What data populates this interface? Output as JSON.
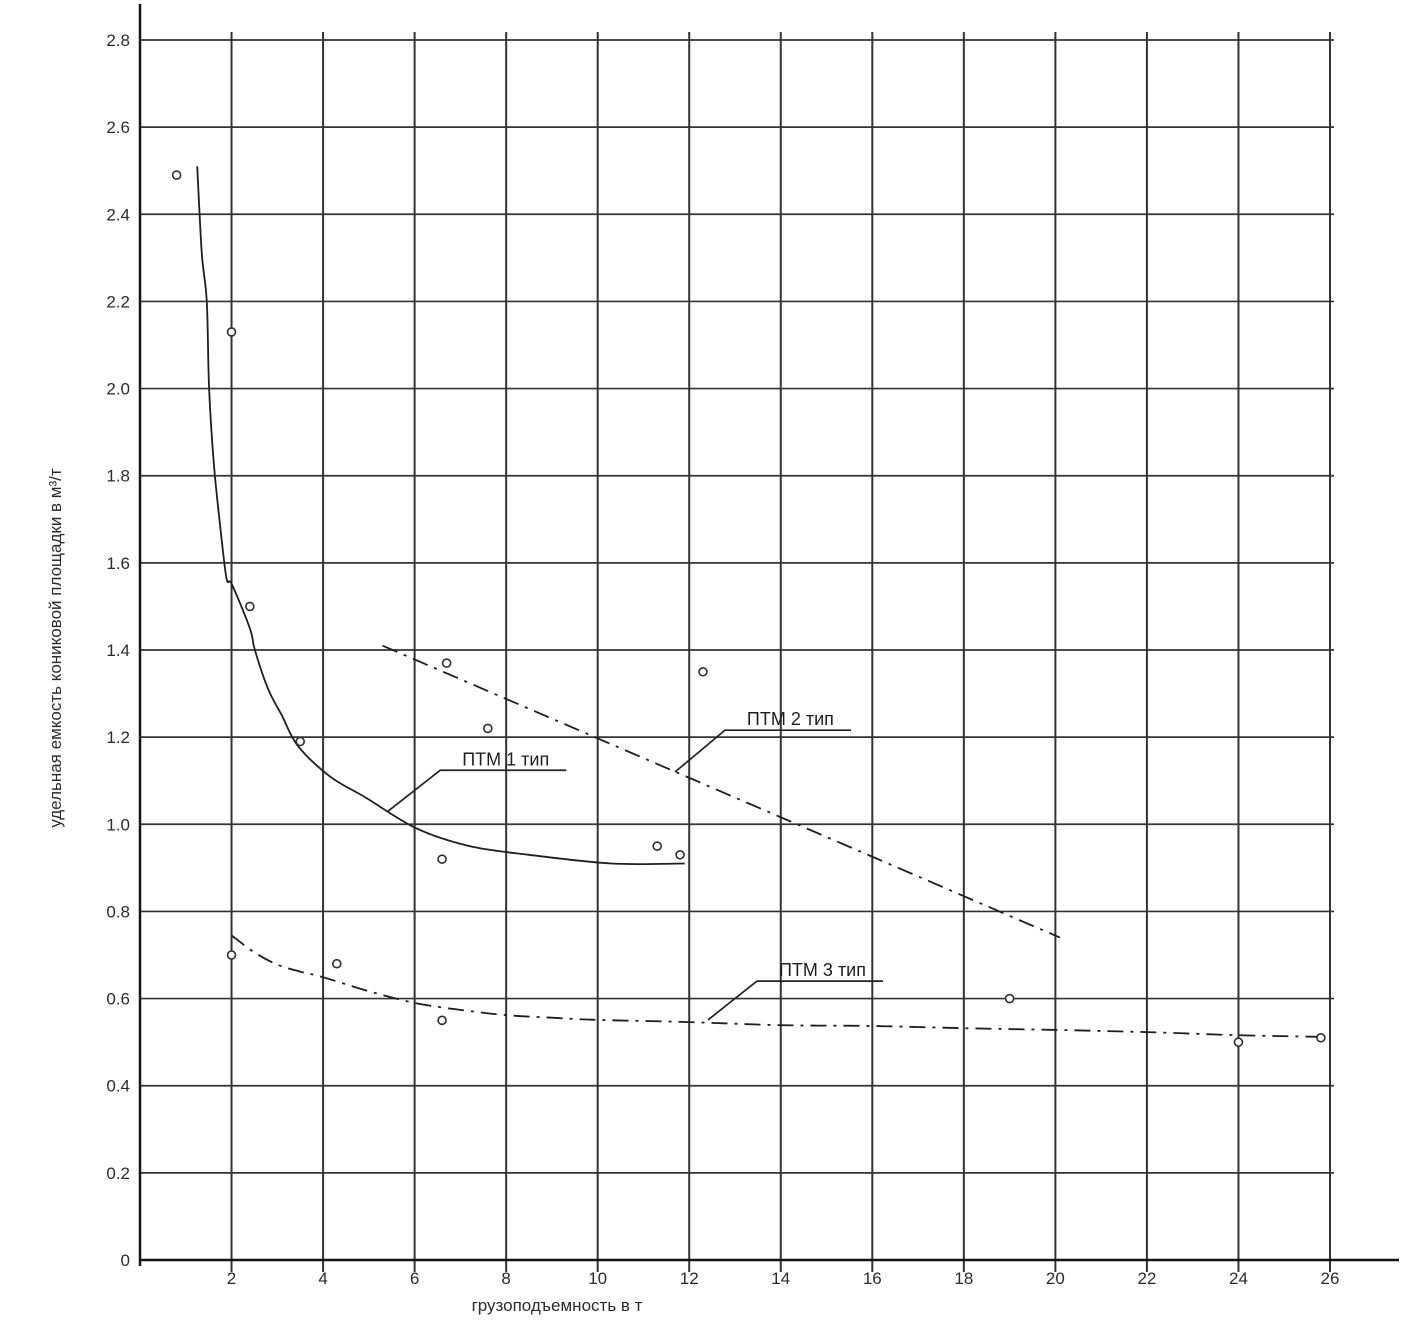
{
  "chart_data": {
    "type": "scatter",
    "title": "",
    "xlabel": "грузоподъемность в т",
    "ylabel": "удельная емкость кониковой площадки в м³/т",
    "xlim": [
      0,
      26
    ],
    "ylim": [
      0,
      2.8
    ],
    "grid": true,
    "line_color": "#1e1e1e",
    "grid_color": "#333333",
    "axis_color": "#141414",
    "xticks": [
      {
        "value": 2,
        "label": "2"
      },
      {
        "value": 4,
        "label": "4"
      },
      {
        "value": 6,
        "label": "6"
      },
      {
        "value": 8,
        "label": "8"
      },
      {
        "value": 10,
        "label": "10"
      },
      {
        "value": 12,
        "label": "12"
      },
      {
        "value": 14,
        "label": "14"
      },
      {
        "value": 16,
        "label": "16"
      },
      {
        "value": 18,
        "label": "18"
      },
      {
        "value": 20,
        "label": "20"
      },
      {
        "value": 22,
        "label": "22"
      },
      {
        "value": 24,
        "label": "24"
      },
      {
        "value": 26,
        "label": "26"
      }
    ],
    "yticks": [
      {
        "value": 0,
        "label": "0"
      },
      {
        "value": 0.2,
        "label": "0.2"
      },
      {
        "value": 0.4,
        "label": "0.4"
      },
      {
        "value": 0.6,
        "label": "0.6"
      },
      {
        "value": 0.8,
        "label": "0.8"
      },
      {
        "value": 1.0,
        "label": "1.0"
      },
      {
        "value": 1.2,
        "label": "1.2"
      },
      {
        "value": 1.4,
        "label": "1.4"
      },
      {
        "value": 1.6,
        "label": "1.6"
      },
      {
        "value": 1.8,
        "label": "1.8"
      },
      {
        "value": 2.0,
        "label": "2.0"
      },
      {
        "value": 2.2,
        "label": "2.2"
      },
      {
        "value": 2.4,
        "label": "2.4"
      },
      {
        "value": 2.6,
        "label": "2.6"
      },
      {
        "value": 2.8,
        "label": "2.8"
      }
    ],
    "scatter_points": [
      [
        0.8,
        2.49
      ],
      [
        2.0,
        2.13
      ],
      [
        2.4,
        1.5
      ],
      [
        3.5,
        1.19
      ],
      [
        6.7,
        1.37
      ],
      [
        7.6,
        1.22
      ],
      [
        6.6,
        0.92
      ],
      [
        11.3,
        0.95
      ],
      [
        11.8,
        0.93
      ],
      [
        12.3,
        1.35
      ],
      [
        2.0,
        0.7
      ],
      [
        4.3,
        0.68
      ],
      [
        6.6,
        0.55
      ],
      [
        19.0,
        0.6
      ],
      [
        24.0,
        0.5
      ],
      [
        25.8,
        0.51
      ]
    ],
    "series": [
      {
        "key": "ptm-1",
        "name": "ПТМ 1 тип",
        "style": "solid",
        "points": [
          [
            1.25,
            2.51
          ],
          [
            1.35,
            2.31
          ],
          [
            1.46,
            2.2
          ],
          [
            1.51,
            2.0
          ],
          [
            1.62,
            1.82
          ],
          [
            1.81,
            1.63
          ],
          [
            1.9,
            1.56
          ],
          [
            2.01,
            1.55
          ],
          [
            2.4,
            1.45
          ],
          [
            2.51,
            1.4
          ],
          [
            2.8,
            1.31
          ],
          [
            3.1,
            1.25
          ],
          [
            3.45,
            1.18
          ],
          [
            4.15,
            1.11
          ],
          [
            4.95,
            1.06
          ],
          [
            6.05,
            0.99
          ],
          [
            7.2,
            0.95
          ],
          [
            8.5,
            0.93
          ],
          [
            10.3,
            0.91
          ],
          [
            11.9,
            0.91
          ]
        ]
      },
      {
        "key": "ptm-2",
        "name": "ПТМ 2 тип",
        "style": "dashdot",
        "points": [
          [
            5.3,
            1.41
          ],
          [
            20.1,
            0.74
          ]
        ]
      },
      {
        "key": "ptm-3",
        "name": "ПТМ 3 тип",
        "style": "dashdot",
        "points": [
          [
            2.0,
            0.745
          ],
          [
            2.5,
            0.706
          ],
          [
            3.0,
            0.678
          ],
          [
            3.5,
            0.662
          ],
          [
            4.0,
            0.649
          ],
          [
            5.0,
            0.617
          ],
          [
            6.0,
            0.59
          ],
          [
            7.0,
            0.574
          ],
          [
            8.0,
            0.562
          ],
          [
            9.0,
            0.556
          ],
          [
            10.0,
            0.551
          ],
          [
            12.0,
            0.546
          ],
          [
            14.0,
            0.539
          ],
          [
            16.0,
            0.537
          ],
          [
            18.0,
            0.532
          ],
          [
            20.0,
            0.528
          ],
          [
            22.0,
            0.523
          ],
          [
            24.0,
            0.516
          ],
          [
            25.85,
            0.512
          ]
        ]
      }
    ],
    "annotations": [
      {
        "series": "ptm-1",
        "text": "ПТМ 1 тип",
        "elbow": [
          6.56,
          1.124
        ],
        "tip": [
          5.42,
          1.03
        ]
      },
      {
        "series": "ptm-2",
        "text": "ПТМ 2 тип",
        "elbow": [
          12.78,
          1.216
        ],
        "tip": [
          11.69,
          1.12
        ]
      },
      {
        "series": "ptm-3",
        "text": "ПТМ 3 тип",
        "elbow": [
          13.48,
          0.64
        ],
        "tip": [
          12.41,
          0.551
        ]
      }
    ]
  }
}
